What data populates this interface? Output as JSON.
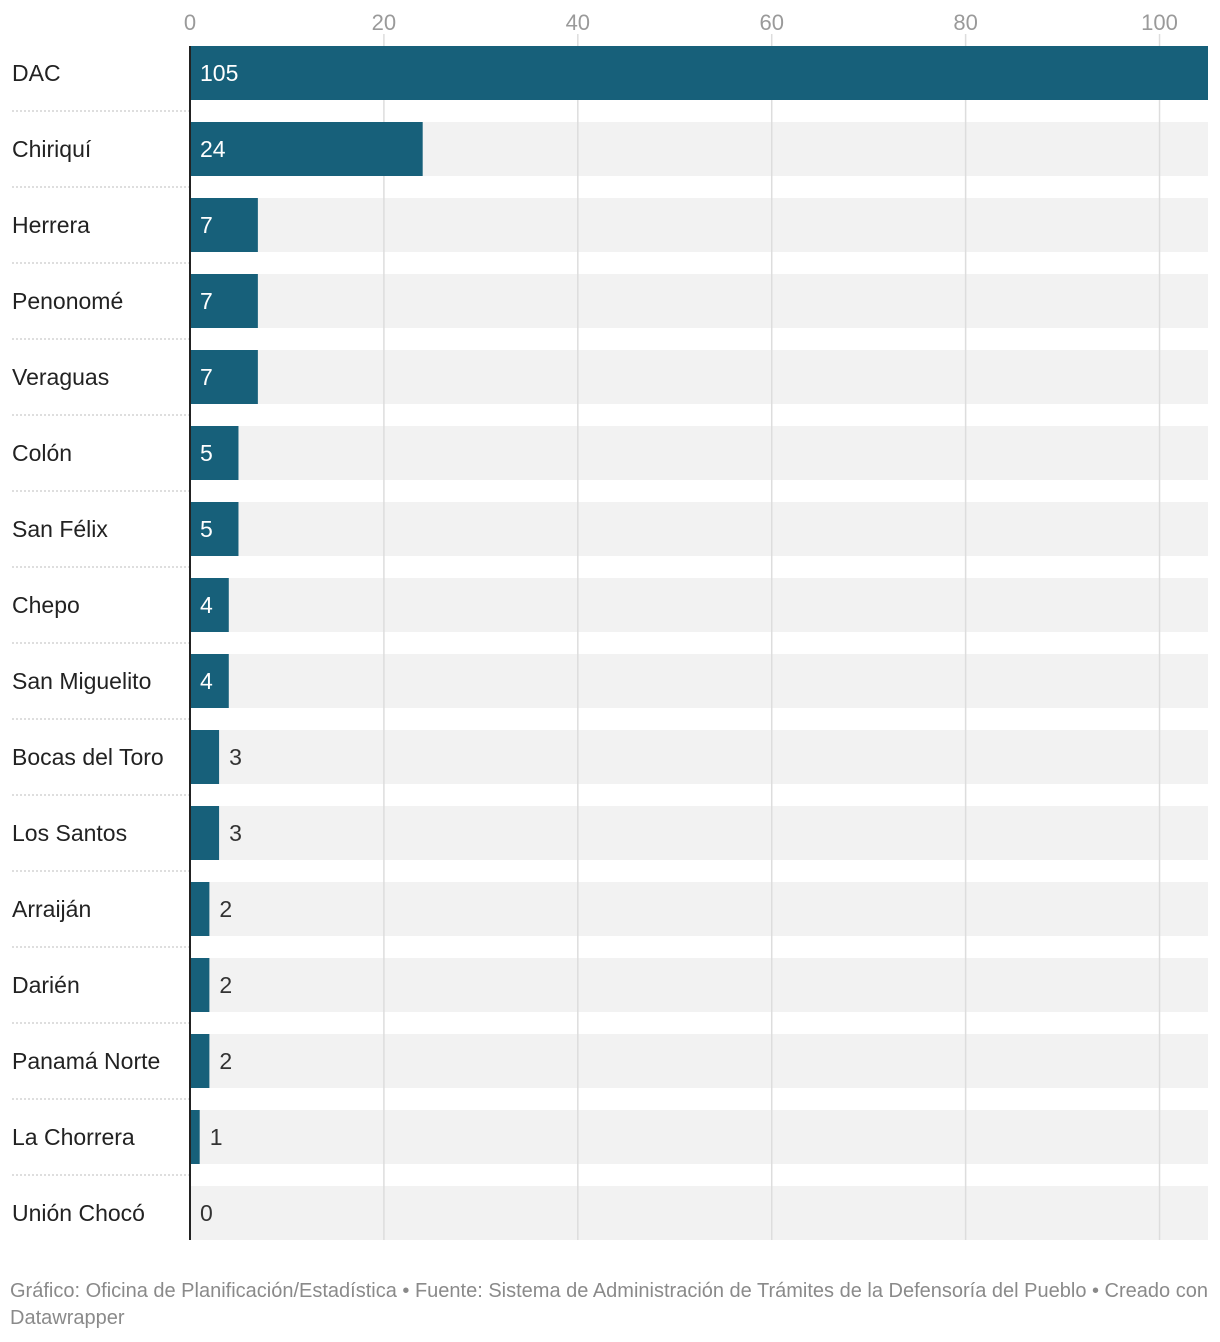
{
  "chart_data": {
    "type": "bar",
    "orientation": "horizontal",
    "categories": [
      "DAC",
      "Chiriquí",
      "Herrera",
      "Penonomé",
      "Veraguas",
      "Colón",
      "San Félix",
      "Chepo",
      "San Miguelito",
      "Bocas del Toro",
      "Los Santos",
      "Arraiján",
      "Darién",
      "Panamá Norte",
      "La Chorrera",
      "Unión Chocó"
    ],
    "values": [
      105,
      24,
      7,
      7,
      7,
      5,
      5,
      4,
      4,
      3,
      3,
      2,
      2,
      2,
      1,
      0
    ],
    "xlim": [
      0,
      105
    ],
    "xticks": [
      0,
      20,
      40,
      60,
      80,
      100
    ],
    "grid": true,
    "colors": {
      "bar": "#17607a",
      "track": "#f2f2f2",
      "grid": "#dddddd",
      "label_inside": "#ffffff",
      "label_outside": "#333333"
    }
  },
  "footer": {
    "text": "Gráfico: Oficina de Planificación/Estadística • Fuente: Sistema de Administración de Trámites de la Defensoría del Pueblo • Creado con Datawrapper"
  }
}
